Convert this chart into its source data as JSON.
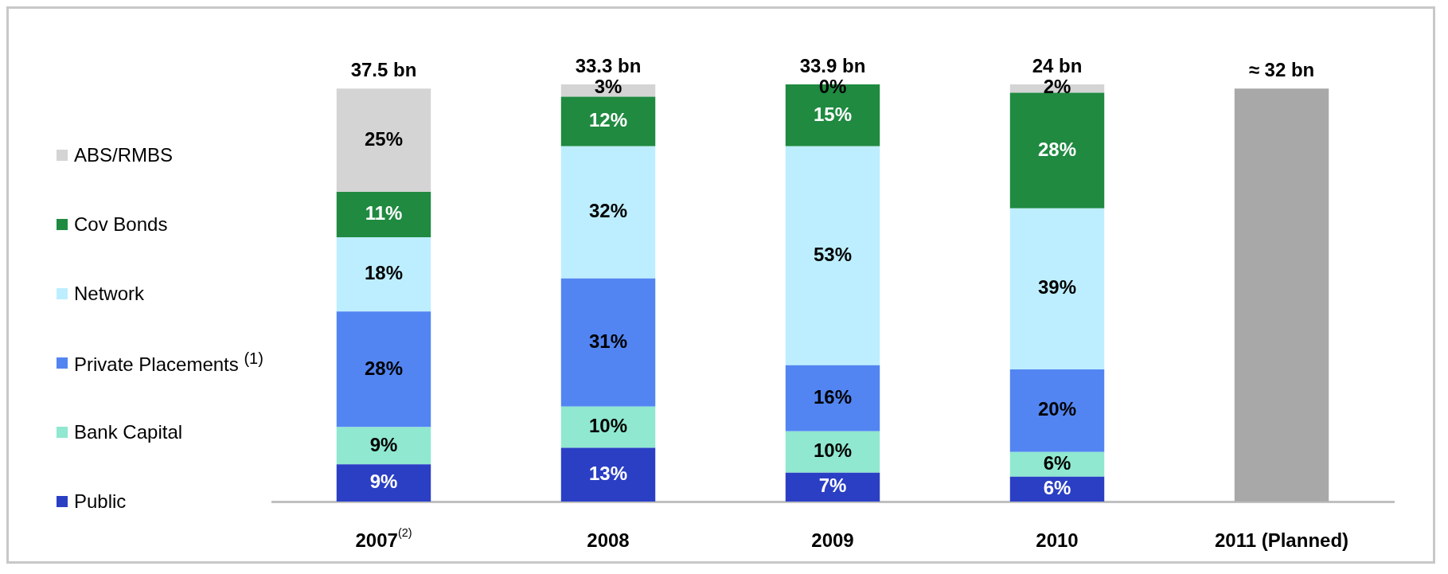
{
  "chart_data": {
    "type": "bar",
    "stacked": true,
    "categories": [
      "2007$^{(2)}$",
      "2008",
      "2009",
      "2010",
      "2011 (Planned)"
    ],
    "series": [
      {
        "name": "Public",
        "color": "#2b3fc4",
        "values": [
          9,
          13,
          7,
          6,
          null
        ],
        "value_labels": [
          "9%",
          "13%",
          "7%",
          "6%",
          null
        ]
      },
      {
        "name": "Bank Capital",
        "color": "#8fe8cf",
        "values": [
          9,
          10,
          10,
          6,
          null
        ],
        "value_labels": [
          "9%",
          "10%",
          "10%",
          "6%",
          null
        ]
      },
      {
        "name": "Private Placements $^{(1)}$",
        "color": "#5285f2",
        "values": [
          28,
          31,
          16,
          20,
          null
        ],
        "value_labels": [
          "28%",
          "31%",
          "16%",
          "20%",
          null
        ]
      },
      {
        "name": "Network",
        "color": "#bdeeff",
        "values": [
          18,
          32,
          53,
          39,
          null
        ],
        "value_labels": [
          "18%",
          "32%",
          "53%",
          "39%",
          null
        ]
      },
      {
        "name": "Cov Bonds",
        "color": "#1f8a40",
        "values": [
          11,
          12,
          15,
          28,
          null
        ],
        "value_labels": [
          "11%",
          "12%",
          "15%",
          "28%",
          null
        ]
      },
      {
        "name": "ABS/RMBS",
        "color": "#d4d4d4",
        "values": [
          25,
          3,
          0,
          2,
          null
        ],
        "value_labels": [
          "25%",
          "3%",
          "0%",
          "2%",
          null
        ]
      },
      {
        "color": "#a8a8a8",
        "values": [
          null,
          null,
          null,
          null,
          100
        ]
      }
    ],
    "annotations": [
      {
        "text": "37.5 bn",
        "x": "2007$^{(2)}$",
        "y": 100
      },
      {
        "text": "33.3 bn",
        "x": "2008",
        "y": 101
      },
      {
        "text": "33.9 bn",
        "x": "2009",
        "y": 101
      },
      {
        "text": "24 bn",
        "x": "2010",
        "y": 101
      },
      {
        "text": "≈ 32 bn",
        "x": "2011 (Planned)",
        "y": 100
      }
    ],
    "legend": "left",
    "grid": false
  }
}
